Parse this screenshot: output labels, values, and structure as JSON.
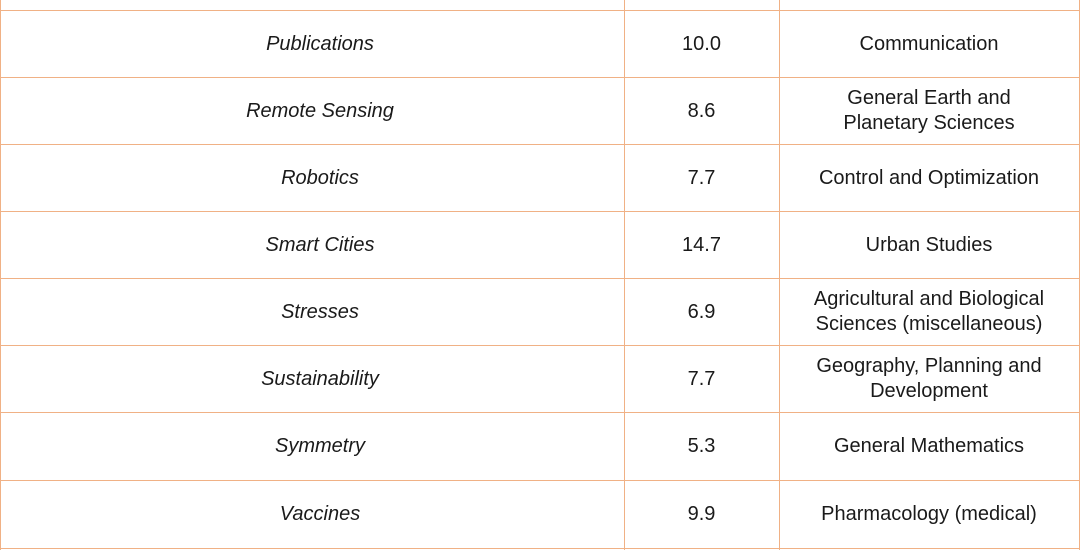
{
  "colors": {
    "grid_line": "#f0b185",
    "text": "#1a1a1a",
    "background": "#ffffff"
  },
  "rows": [
    {
      "journal": "Publications",
      "value": "10.0",
      "category": "Communication"
    },
    {
      "journal": "Remote Sensing",
      "value": "8.6",
      "category": "General Earth and Planetary Sciences"
    },
    {
      "journal": "Robotics",
      "value": "7.7",
      "category": "Control and Optimization"
    },
    {
      "journal": "Smart Cities",
      "value": "14.7",
      "category": "Urban Studies"
    },
    {
      "journal": "Stresses",
      "value": "6.9",
      "category": "Agricultural and Biological Sciences (miscellaneous)"
    },
    {
      "journal": "Sustainability",
      "value": "7.7",
      "category": "Geography, Planning and Development"
    },
    {
      "journal": "Symmetry",
      "value": "5.3",
      "category": "General Mathematics"
    },
    {
      "journal": "Vaccines",
      "value": "9.9",
      "category": "Pharmacology (medical)"
    }
  ]
}
